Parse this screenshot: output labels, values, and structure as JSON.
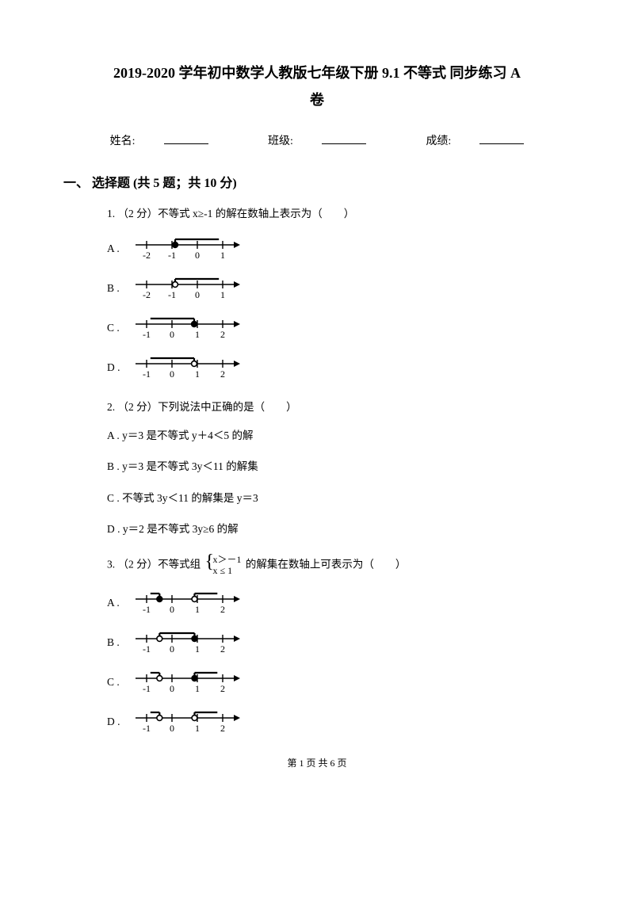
{
  "title_line1": "2019-2020 学年初中数学人教版七年级下册 9.1 不等式 同步练习 A",
  "title_line2": "卷",
  "form": {
    "name_label": "姓名:",
    "class_label": "班级:",
    "score_label": "成绩:"
  },
  "section1_title": "一、 选择题 (共 5 题；共 10 分)",
  "q1": {
    "text": "1. （2 分）不等式 x≥-1 的解在数轴上表示为（　　）",
    "labels": {
      "A": "A .",
      "B": "B .",
      "C": "C .",
      "D": "D ."
    },
    "axes": {
      "A": {
        "ticks": [
          "-2",
          "-1",
          "0",
          "1"
        ],
        "dotPerc": 0.375,
        "dotFill": true,
        "rayDir": "right",
        "rayEnd": 0.95
      },
      "B": {
        "ticks": [
          "-2",
          "-1",
          "0",
          "1"
        ],
        "dotPerc": 0.375,
        "dotFill": false,
        "rayDir": "right",
        "rayEnd": 0.95
      },
      "C": {
        "ticks": [
          "-1",
          "0",
          "1",
          "2"
        ],
        "dotPerc": 0.625,
        "dotFill": true,
        "rayDir": "left",
        "rayEnd": 0.05
      },
      "D": {
        "ticks": [
          "-1",
          "0",
          "1",
          "2"
        ],
        "dotPerc": 0.625,
        "dotFill": false,
        "rayDir": "left",
        "rayEnd": 0.05
      }
    }
  },
  "q2": {
    "text": "2. （2 分）下列说法中正确的是（　　）",
    "A": "A . y＝3 是不等式 y＋4＜5 的解",
    "B": "B . y＝3 是不等式 3y＜11 的解集",
    "C": "C . 不等式 3y＜11 的解集是 y＝3",
    "D": "D . y＝2 是不等式 3y≥6 的解"
  },
  "q3": {
    "text_pre": "3. （2 分）不等式组 ",
    "sys_top": "x＞－1",
    "sys_bot": "x ≤ 1",
    "text_post": " 的解集在数轴上可表示为（　　）",
    "labels": {
      "A": "A .",
      "B": "B .",
      "C": "C .",
      "D": "D ."
    },
    "axes": {
      "A": {
        "ticks": [
          "-1",
          "0",
          "1",
          "2"
        ],
        "p1": 0.17,
        "p1Fill": true,
        "p2": 0.63,
        "p2Fill": false,
        "rays": [
          {
            "from": 0.17,
            "dir": "left",
            "len": 0.12
          },
          {
            "from": 0.63,
            "dir": "right",
            "len": 0.3
          }
        ]
      },
      "B": {
        "ticks": [
          "-1",
          "0",
          "1",
          "2"
        ],
        "p1": 0.17,
        "p1Fill": false,
        "p2": 0.63,
        "p2Fill": true,
        "seg": {
          "from": 0.17,
          "to": 0.63
        }
      },
      "C": {
        "ticks": [
          "-1",
          "0",
          "1",
          "2"
        ],
        "p1": 0.17,
        "p1Fill": false,
        "p2": 0.63,
        "p2Fill": true,
        "rays": [
          {
            "from": 0.17,
            "dir": "left",
            "len": 0.12
          },
          {
            "from": 0.63,
            "dir": "right",
            "len": 0.3
          }
        ]
      },
      "D": {
        "ticks": [
          "-1",
          "0",
          "1",
          "2"
        ],
        "p1": 0.17,
        "p1Fill": false,
        "p2": 0.63,
        "p2Fill": false,
        "rays": [
          {
            "from": 0.17,
            "dir": "left",
            "len": 0.12
          },
          {
            "from": 0.63,
            "dir": "right",
            "len": 0.3
          }
        ]
      }
    }
  },
  "footer": "第 1 页 共 6 页",
  "style": {
    "axis": {
      "width": 140,
      "height": 38,
      "lineY": 14,
      "tickH": 5,
      "dotR": 3.4,
      "barH": 7,
      "color": "#000000",
      "labelSize": 12
    }
  }
}
